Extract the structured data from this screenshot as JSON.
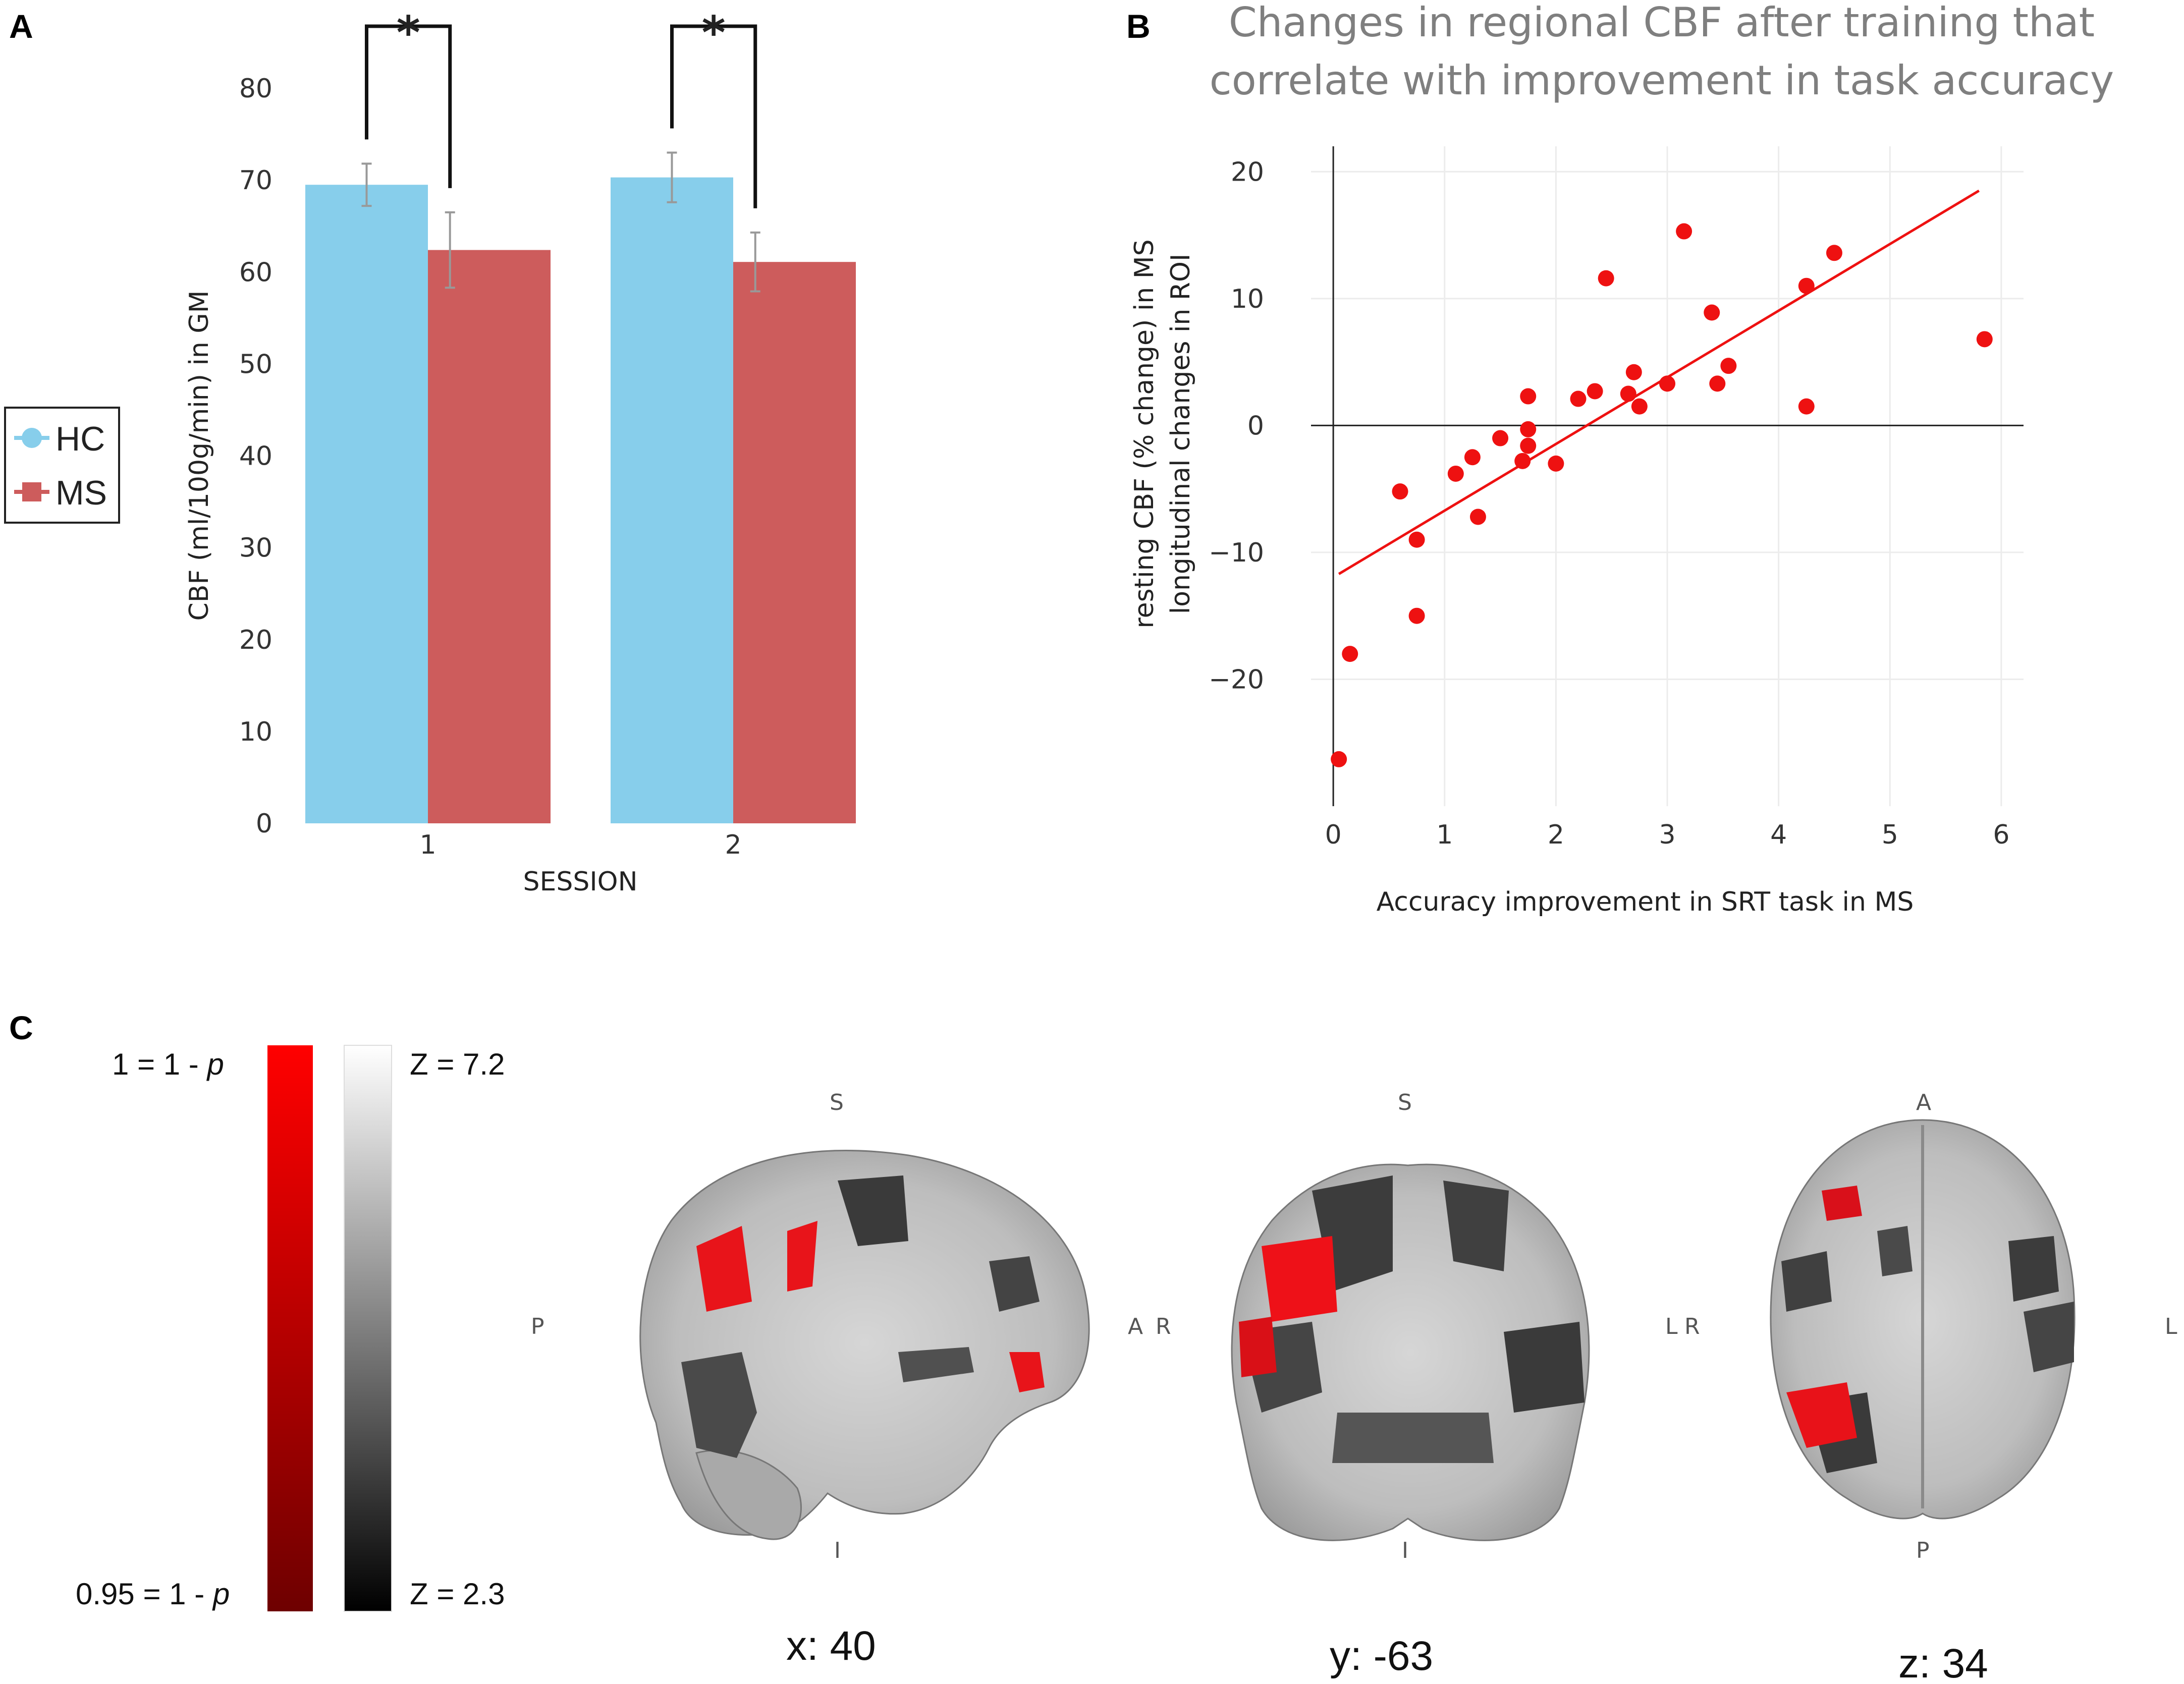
{
  "panels": {
    "a": "A",
    "b": "B",
    "c": "C"
  },
  "chart_data": [
    {
      "type": "bar",
      "panel": "A",
      "categories": [
        "1",
        "2"
      ],
      "series": [
        {
          "name": "HC",
          "color": "#87ceeb",
          "values": [
            69.5,
            70.3
          ],
          "errors": [
            2.3,
            2.7
          ]
        },
        {
          "name": "MS",
          "color": "#cd5c5c",
          "values": [
            62.4,
            61.1
          ],
          "errors": [
            4.1,
            3.2
          ]
        }
      ],
      "xlabel": "SESSION",
      "ylabel": "CBF (ml/100g/min) in GM",
      "ylim": [
        0,
        80
      ],
      "yticks": [
        "0",
        "10",
        "20",
        "30",
        "40",
        "50",
        "60",
        "70",
        "80"
      ],
      "significance": [
        "*",
        "*"
      ],
      "legend": {
        "placement": "left",
        "entries": [
          "HC",
          "MS"
        ]
      }
    },
    {
      "type": "scatter",
      "panel": "B",
      "title_lines": [
        "Changes in regional CBF after training that",
        "correlate with improvement in task accuracy"
      ],
      "xlabel": "Accuracy improvement in SRT task in MS",
      "ylabel_lines": [
        "resting CBF (% change) in MS",
        "longitudinal changes in ROI"
      ],
      "xlim": [
        -0.2,
        6.2
      ],
      "ylim": [
        -30,
        22
      ],
      "xticks": [
        "0",
        "1",
        "2",
        "3",
        "4",
        "5",
        "6"
      ],
      "yticks": [
        "20",
        "10",
        "0",
        "−10",
        "−20"
      ],
      "point_color": "#ee1111",
      "points": [
        [
          0.05,
          -26.3
        ],
        [
          0.15,
          -18.0
        ],
        [
          0.6,
          -5.2
        ],
        [
          0.75,
          -9.0
        ],
        [
          0.75,
          -15.0
        ],
        [
          1.1,
          -3.8
        ],
        [
          1.25,
          -2.5
        ],
        [
          1.3,
          -7.2
        ],
        [
          1.5,
          -1.0
        ],
        [
          1.7,
          -2.8
        ],
        [
          1.75,
          -0.3
        ],
        [
          1.75,
          -1.6
        ],
        [
          1.75,
          2.3
        ],
        [
          2.0,
          -3.0
        ],
        [
          2.2,
          2.1
        ],
        [
          2.35,
          2.7
        ],
        [
          2.45,
          11.6
        ],
        [
          2.65,
          2.5
        ],
        [
          2.7,
          4.2
        ],
        [
          2.75,
          1.5
        ],
        [
          3.0,
          3.3
        ],
        [
          3.15,
          15.3
        ],
        [
          3.4,
          8.9
        ],
        [
          3.45,
          3.3
        ],
        [
          3.55,
          4.7
        ],
        [
          4.25,
          11.0
        ],
        [
          4.25,
          1.5
        ],
        [
          4.5,
          13.6
        ],
        [
          5.85,
          6.8
        ]
      ],
      "trend_line": {
        "x": [
          0.05,
          5.8
        ],
        "y": [
          -11.7,
          18.5
        ],
        "color": "#ee1111"
      }
    }
  ],
  "panel_c": {
    "scale_red": {
      "top": "1 = 1 - ",
      "bottom": "0.95 = 1 - ",
      "var": "p",
      "top_color": "#ff0000",
      "bottom_color": "#6e0000"
    },
    "scale_gray": {
      "top": "Z = 7.2",
      "bottom": "Z = 2.3"
    },
    "slices": [
      {
        "label": "x: 40",
        "top": "S",
        "bottom": "I",
        "left": "P",
        "right": "A"
      },
      {
        "label": "y: -63",
        "top": "S",
        "bottom": "I",
        "left": "R",
        "right": "L"
      },
      {
        "label": "z: 34",
        "top": "A",
        "bottom": "P",
        "left": "R",
        "right": "L"
      }
    ]
  }
}
